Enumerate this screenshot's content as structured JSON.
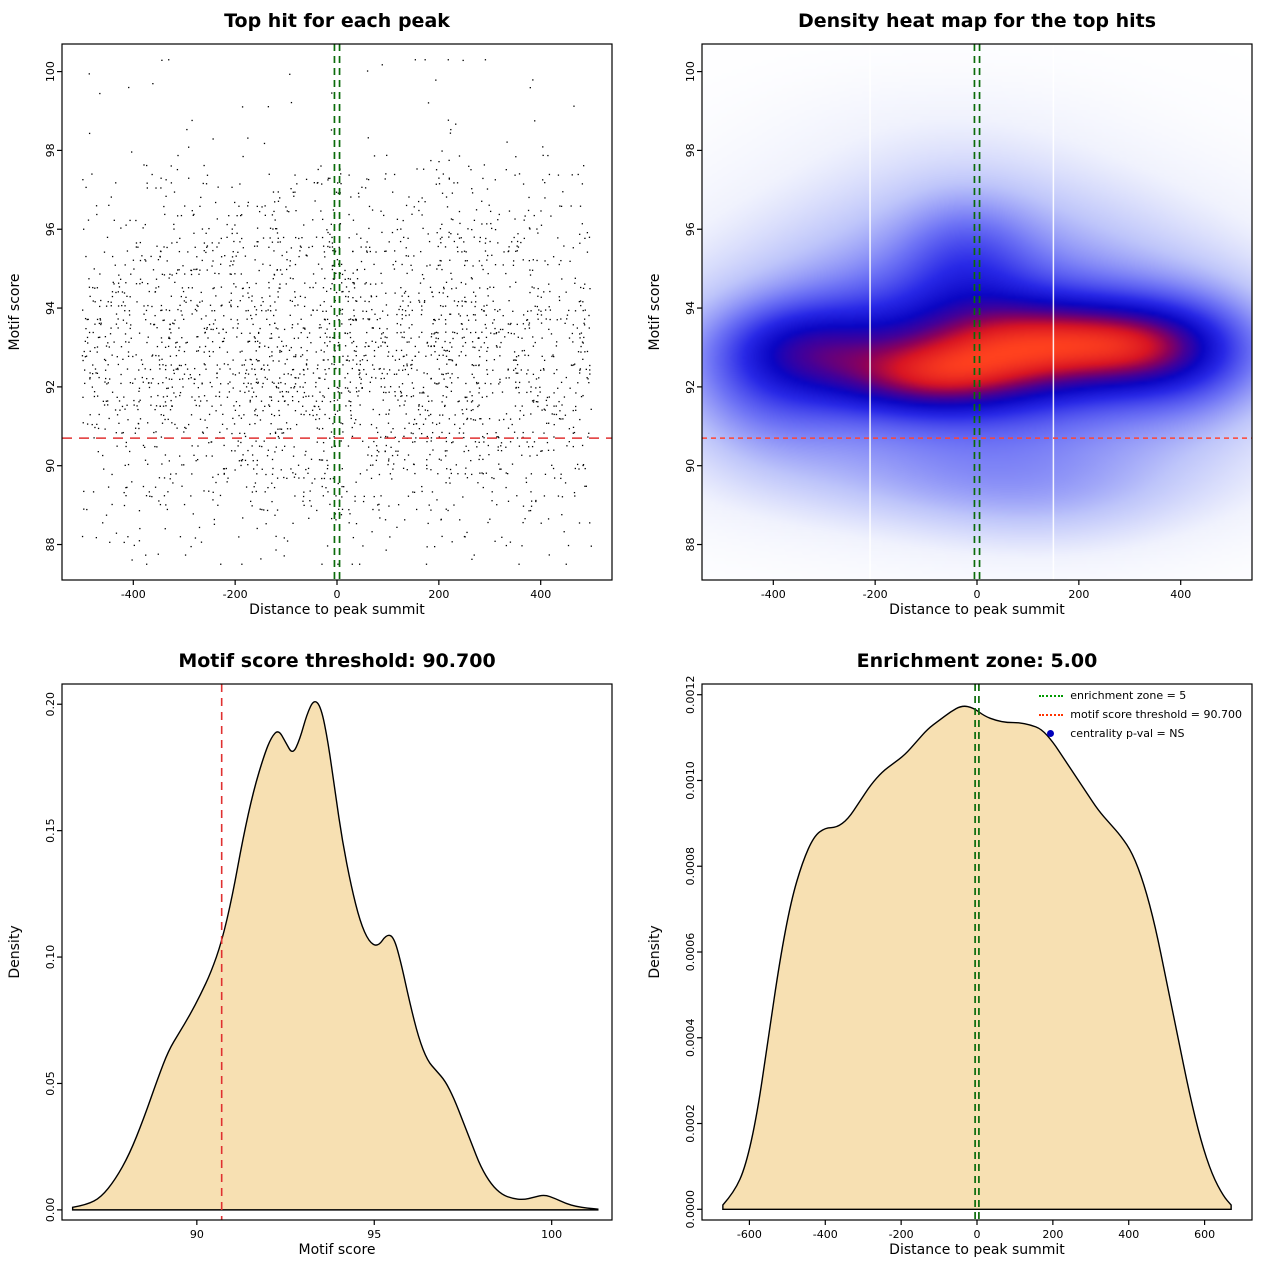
{
  "page": {
    "background": "#ffffff"
  },
  "chart_data": [
    {
      "id": "top-hit-scatter",
      "type": "scatter",
      "title": "Top hit for each peak",
      "xlabel": "Distance to peak summit",
      "ylabel": "Motif score",
      "xlim": [
        -540,
        540
      ],
      "ylim": [
        87.1,
        100.7
      ],
      "xticks": [
        {
          "v": -400,
          "label": "-400"
        },
        {
          "v": -200,
          "label": "-200"
        },
        {
          "v": 0,
          "label": "0"
        },
        {
          "v": 200,
          "label": "200"
        },
        {
          "v": 400,
          "label": "400"
        }
      ],
      "yticks": [
        {
          "v": 88,
          "label": "88"
        },
        {
          "v": 90,
          "label": "90"
        },
        {
          "v": 92,
          "label": "92"
        },
        {
          "v": 94,
          "label": "94"
        },
        {
          "v": 96,
          "label": "96"
        },
        {
          "v": 98,
          "label": "98"
        },
        {
          "v": 100,
          "label": "100"
        }
      ],
      "point_color": "#000000",
      "points_spec": {
        "n": 2700,
        "seed": 1337,
        "x_min": -500,
        "x_max": 500,
        "y_min": 87.5,
        "y_max": 100.3,
        "band_step": 0.115,
        "uniform_frac": 0.75,
        "score_density_ref": 2
      },
      "threshold_line": {
        "y": 90.7,
        "color": "#e03030",
        "dash": [
          10,
          7
        ]
      },
      "zone_lines": {
        "x": [
          -5,
          5
        ],
        "color": "#0a6b0a",
        "dash": [
          7,
          5
        ]
      }
    },
    {
      "id": "top-hits-heatmap",
      "type": "heatmap",
      "title": "Density heat map for the top hits",
      "xlabel": "Distance to peak summit",
      "ylabel": "Motif score",
      "xlim": [
        -540,
        540
      ],
      "ylim": [
        87.1,
        100.7
      ],
      "xticks": [
        {
          "v": -400,
          "label": "-400"
        },
        {
          "v": -200,
          "label": "-200"
        },
        {
          "v": 0,
          "label": "0"
        },
        {
          "v": 200,
          "label": "200"
        },
        {
          "v": 400,
          "label": "400"
        }
      ],
      "yticks": [
        {
          "v": 88,
          "label": "88"
        },
        {
          "v": 90,
          "label": "90"
        },
        {
          "v": 92,
          "label": "92"
        },
        {
          "v": 94,
          "label": "94"
        },
        {
          "v": 96,
          "label": "96"
        },
        {
          "v": 98,
          "label": "98"
        },
        {
          "v": 100,
          "label": "100"
        }
      ],
      "kernels": [
        {
          "x": 0,
          "y": 92.9,
          "sx": 420,
          "sy": 2.6,
          "a": 0.5
        },
        {
          "x": 0,
          "y": 92.9,
          "sx": 330,
          "sy": 1.45,
          "a": 0.55
        },
        {
          "x": -90,
          "y": 92.25,
          "sx": 130,
          "sy": 0.62,
          "a": 0.55
        },
        {
          "x": 130,
          "y": 93.1,
          "sx": 150,
          "sy": 0.75,
          "a": 0.6
        },
        {
          "x": -340,
          "y": 93.0,
          "sx": 110,
          "sy": 0.75,
          "a": 0.38
        },
        {
          "x": 320,
          "y": 93.05,
          "sx": 110,
          "sy": 0.7,
          "a": 0.42
        },
        {
          "x": -20,
          "y": 95.3,
          "sx": 90,
          "sy": 1.1,
          "a": 0.25
        },
        {
          "x": 0,
          "y": 96.3,
          "sx": 280,
          "sy": 1.3,
          "a": 0.16
        },
        {
          "x": -60,
          "y": 98.6,
          "sx": 240,
          "sy": 1.1,
          "a": 0.08
        },
        {
          "x": 40,
          "y": 89.6,
          "sx": 320,
          "sy": 0.9,
          "a": 0.22
        },
        {
          "x": 150,
          "y": 88.6,
          "sx": 200,
          "sy": 0.9,
          "a": 0.1
        },
        {
          "x": -420,
          "y": 91.8,
          "sx": 120,
          "sy": 1.3,
          "a": 0.25
        },
        {
          "x": 430,
          "y": 92.8,
          "sx": 120,
          "sy": 1.2,
          "a": 0.3
        }
      ],
      "colormap": [
        {
          "v": 0.0,
          "c": [
            255,
            255,
            255
          ]
        },
        {
          "v": 0.08,
          "c": [
            240,
            242,
            253
          ]
        },
        {
          "v": 0.2,
          "c": [
            190,
            197,
            250
          ]
        },
        {
          "v": 0.35,
          "c": [
            110,
            115,
            245
          ]
        },
        {
          "v": 0.5,
          "c": [
            40,
            40,
            230
          ]
        },
        {
          "v": 0.62,
          "c": [
            10,
            5,
            195
          ]
        },
        {
          "v": 0.72,
          "c": [
            70,
            0,
            150
          ]
        },
        {
          "v": 0.8,
          "c": [
            140,
            0,
            90
          ]
        },
        {
          "v": 0.88,
          "c": [
            215,
            20,
            35
          ]
        },
        {
          "v": 1.0,
          "c": [
            255,
            65,
            30
          ]
        }
      ],
      "gap_lines_x": [
        -210,
        150
      ],
      "threshold_line": {
        "y": 90.7,
        "color": "#ff4433",
        "dash": [
          5,
          4
        ]
      },
      "zone_lines": {
        "x": [
          -5,
          5
        ],
        "color": "#0a6b0a",
        "dash": [
          7,
          5
        ]
      }
    },
    {
      "id": "motif-score-density",
      "type": "area",
      "title": "Motif score threshold: 90.700",
      "xlabel": "Motif score",
      "ylabel": "Density",
      "xlim": [
        86.2,
        101.7
      ],
      "ylim": [
        -0.004,
        0.208
      ],
      "xticks": [
        {
          "v": 90,
          "label": "90"
        },
        {
          "v": 95,
          "label": "95"
        },
        {
          "v": 100,
          "label": "100"
        }
      ],
      "yticks": [
        {
          "v": 0,
          "label": "0.00"
        },
        {
          "v": 0.05,
          "label": "0.05"
        },
        {
          "v": 0.1,
          "label": "0.10"
        },
        {
          "v": 0.15,
          "label": "0.15"
        },
        {
          "v": 0.2,
          "label": "0.20"
        }
      ],
      "fill_color": "#f7e0b2",
      "line_color": "#000000",
      "points": [
        [
          86.5,
          0.001
        ],
        [
          86.9,
          0.002
        ],
        [
          87.3,
          0.005
        ],
        [
          87.7,
          0.012
        ],
        [
          88.1,
          0.022
        ],
        [
          88.5,
          0.036
        ],
        [
          88.9,
          0.052
        ],
        [
          89.2,
          0.063
        ],
        [
          89.5,
          0.07
        ],
        [
          89.8,
          0.077
        ],
        [
          90.1,
          0.085
        ],
        [
          90.4,
          0.094
        ],
        [
          90.7,
          0.106
        ],
        [
          91.0,
          0.124
        ],
        [
          91.3,
          0.147
        ],
        [
          91.6,
          0.166
        ],
        [
          91.9,
          0.18
        ],
        [
          92.1,
          0.187
        ],
        [
          92.3,
          0.19
        ],
        [
          92.5,
          0.185
        ],
        [
          92.7,
          0.18
        ],
        [
          92.9,
          0.186
        ],
        [
          93.1,
          0.196
        ],
        [
          93.3,
          0.202
        ],
        [
          93.5,
          0.199
        ],
        [
          93.7,
          0.185
        ],
        [
          93.9,
          0.165
        ],
        [
          94.1,
          0.146
        ],
        [
          94.35,
          0.128
        ],
        [
          94.6,
          0.114
        ],
        [
          94.85,
          0.106
        ],
        [
          95.1,
          0.104
        ],
        [
          95.35,
          0.109
        ],
        [
          95.55,
          0.108
        ],
        [
          95.75,
          0.098
        ],
        [
          96.0,
          0.082
        ],
        [
          96.25,
          0.068
        ],
        [
          96.5,
          0.059
        ],
        [
          96.75,
          0.055
        ],
        [
          97.0,
          0.051
        ],
        [
          97.25,
          0.044
        ],
        [
          97.5,
          0.035
        ],
        [
          97.75,
          0.026
        ],
        [
          98.0,
          0.017
        ],
        [
          98.3,
          0.01
        ],
        [
          98.6,
          0.006
        ],
        [
          98.9,
          0.0045
        ],
        [
          99.2,
          0.004
        ],
        [
          99.5,
          0.005
        ],
        [
          99.8,
          0.006
        ],
        [
          100.1,
          0.0045
        ],
        [
          100.4,
          0.0025
        ],
        [
          100.7,
          0.0013
        ],
        [
          101.0,
          0.0007
        ],
        [
          101.3,
          0.0003
        ]
      ],
      "vline": {
        "x": 90.7,
        "color": "#e03030",
        "dash": [
          8,
          6
        ]
      }
    },
    {
      "id": "summit-distance-density",
      "type": "area",
      "title": "Enrichment zone: 5.00",
      "xlabel": "Distance to peak summit",
      "ylabel": "Density",
      "xlim": [
        -725,
        725
      ],
      "ylim": [
        -2.5e-05,
        0.001225
      ],
      "xticks": [
        {
          "v": -600,
          "label": "-600"
        },
        {
          "v": -400,
          "label": "-400"
        },
        {
          "v": -200,
          "label": "-200"
        },
        {
          "v": 0,
          "label": "0"
        },
        {
          "v": 200,
          "label": "200"
        },
        {
          "v": 400,
          "label": "400"
        },
        {
          "v": 600,
          "label": "600"
        }
      ],
      "yticks": [
        {
          "v": 0,
          "label": "0.0000"
        },
        {
          "v": 0.0002,
          "label": "0.0002"
        },
        {
          "v": 0.0004,
          "label": "0.0004"
        },
        {
          "v": 0.0006,
          "label": "0.0006"
        },
        {
          "v": 0.0008,
          "label": "0.0008"
        },
        {
          "v": 0.001,
          "label": "0.0010"
        },
        {
          "v": 0.0012,
          "label": "0.0012"
        }
      ],
      "fill_color": "#f7e0b2",
      "line_color": "#000000",
      "points": [
        [
          -670,
          1e-05
        ],
        [
          -640,
          4e-05
        ],
        [
          -610,
          0.0001
        ],
        [
          -580,
          0.00022
        ],
        [
          -550,
          0.0004
        ],
        [
          -520,
          0.00058
        ],
        [
          -490,
          0.00072
        ],
        [
          -460,
          0.00081
        ],
        [
          -430,
          0.00087
        ],
        [
          -400,
          0.00089
        ],
        [
          -370,
          0.00089
        ],
        [
          -340,
          0.00091
        ],
        [
          -310,
          0.00095
        ],
        [
          -280,
          0.00099
        ],
        [
          -250,
          0.00102
        ],
        [
          -220,
          0.00104
        ],
        [
          -190,
          0.00106
        ],
        [
          -160,
          0.00109
        ],
        [
          -130,
          0.00112
        ],
        [
          -100,
          0.00114
        ],
        [
          -70,
          0.00116
        ],
        [
          -40,
          0.001175
        ],
        [
          -10,
          0.00117
        ],
        [
          20,
          0.00115
        ],
        [
          50,
          0.00114
        ],
        [
          80,
          0.001135
        ],
        [
          110,
          0.001135
        ],
        [
          140,
          0.00113
        ],
        [
          170,
          0.00112
        ],
        [
          200,
          0.00109
        ],
        [
          230,
          0.00105
        ],
        [
          260,
          0.00101
        ],
        [
          290,
          0.00097
        ],
        [
          320,
          0.00093
        ],
        [
          350,
          0.0009
        ],
        [
          380,
          0.00087
        ],
        [
          410,
          0.00083
        ],
        [
          440,
          0.00076
        ],
        [
          470,
          0.00066
        ],
        [
          500,
          0.00053
        ],
        [
          530,
          0.0004
        ],
        [
          560,
          0.00027
        ],
        [
          590,
          0.00016
        ],
        [
          620,
          8e-05
        ],
        [
          650,
          3e-05
        ],
        [
          670,
          1e-05
        ]
      ],
      "zone_lines": {
        "x": [
          -5,
          5
        ],
        "color": "#0a6b0a",
        "dash": [
          7,
          5
        ]
      },
      "legend": {
        "entries": [
          {
            "symbol": "dotted-line",
            "color": "#009900",
            "label": "enrichment zone = 5"
          },
          {
            "symbol": "dotted-line",
            "color": "#ff3300",
            "label": "motif score threshold = 90.700"
          },
          {
            "symbol": "point",
            "color": "#0000bb",
            "label": "centrality p-val = NS"
          }
        ]
      }
    }
  ]
}
